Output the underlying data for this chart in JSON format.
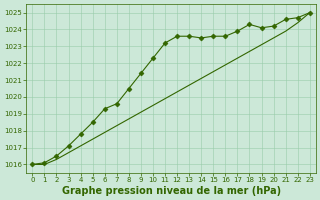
{
  "line1_x": [
    0,
    1,
    2,
    3,
    4,
    5,
    6,
    7,
    8,
    9,
    10,
    11,
    12,
    13,
    14,
    15,
    16,
    17,
    18,
    19,
    20,
    21,
    22,
    23
  ],
  "line1_y": [
    1016.0,
    1016.1,
    1016.5,
    1017.1,
    1017.8,
    1018.5,
    1019.3,
    1019.6,
    1020.5,
    1021.4,
    1022.3,
    1023.2,
    1023.6,
    1023.6,
    1023.5,
    1023.6,
    1023.6,
    1023.9,
    1024.3,
    1024.1,
    1024.2,
    1024.6,
    1024.7,
    1025.0
  ],
  "line2_x": [
    0,
    1,
    2,
    3,
    4,
    5,
    6,
    7,
    8,
    9,
    10,
    11,
    12,
    13,
    14,
    15,
    16,
    17,
    18,
    19,
    20,
    21,
    22,
    23
  ],
  "line2_y": [
    1016.0,
    1016.0,
    1016.3,
    1016.7,
    1017.1,
    1017.5,
    1017.9,
    1018.3,
    1018.7,
    1019.1,
    1019.5,
    1019.9,
    1020.3,
    1020.7,
    1021.1,
    1021.5,
    1021.9,
    1022.3,
    1022.7,
    1023.1,
    1023.5,
    1023.9,
    1024.4,
    1025.0
  ],
  "line_color": "#336600",
  "marker": "D",
  "marker_size": 2.5,
  "bg_color": "#cce8d8",
  "grid_color": "#99ccaa",
  "title": "Graphe pression niveau de la mer (hPa)",
  "ylim": [
    1015.5,
    1025.5
  ],
  "xlim": [
    -0.5,
    23.5
  ],
  "yticks": [
    1016,
    1017,
    1018,
    1019,
    1020,
    1021,
    1022,
    1023,
    1024,
    1025
  ],
  "xticks": [
    0,
    1,
    2,
    3,
    4,
    5,
    6,
    7,
    8,
    9,
    10,
    11,
    12,
    13,
    14,
    15,
    16,
    17,
    18,
    19,
    20,
    21,
    22,
    23
  ],
  "title_color": "#336600",
  "tick_color": "#336600",
  "tick_fontsize": 5.0,
  "title_fontsize": 7.0,
  "fig_bg_color": "#cce8d8"
}
